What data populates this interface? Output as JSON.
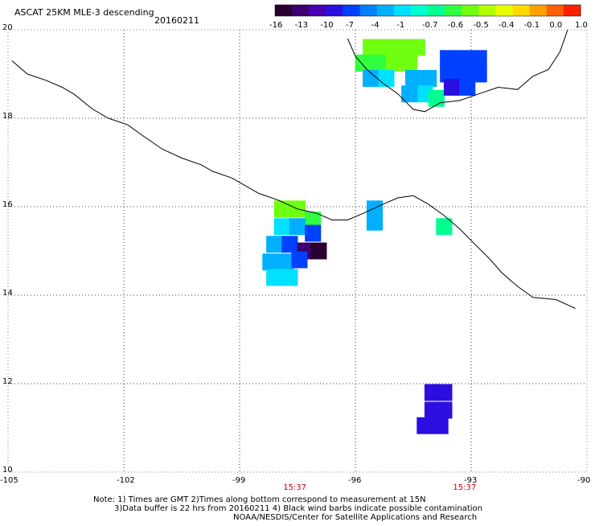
{
  "header": {
    "title": "ASCAT 25KM MLE-3 descending",
    "date": "20160211"
  },
  "colorbar": {
    "labels": [
      "-16",
      "-13",
      "-10",
      "-7",
      "-4",
      "-1",
      "-0.7",
      "-0.6",
      "-0.5",
      "-0.4",
      "-0.1",
      "0.0",
      "1.0"
    ],
    "colors": [
      "#2a0030",
      "#3c0070",
      "#4a00b0",
      "#2b0ee0",
      "#0040ff",
      "#0080ff",
      "#00b0ff",
      "#00e0ff",
      "#00ffd0",
      "#00ff90",
      "#30ff40",
      "#70ff10",
      "#b0ff00",
      "#e8ff00",
      "#ffd800",
      "#ffa000",
      "#ff6000",
      "#ff2000"
    ]
  },
  "axes": {
    "lon_ticks": [
      "-105",
      "-102",
      "-99",
      "-96",
      "-93",
      "-90"
    ],
    "lon_values": [
      -105,
      -102,
      -99,
      -96,
      -93,
      -90
    ],
    "lat_ticks": [
      "20",
      "18",
      "16",
      "14",
      "12",
      "10"
    ],
    "lat_values": [
      20,
      18,
      16,
      14,
      12,
      10
    ],
    "times": [
      "15:37",
      "15:37"
    ],
    "time_lons": [
      -97.6,
      -93.2
    ],
    "time_color": "#cc0000"
  },
  "map_data": {
    "lon_range": [
      -105,
      -90
    ],
    "lat_range": [
      10,
      20
    ],
    "coastline": [
      [
        -104.9,
        19.3
      ],
      [
        -104.5,
        19.0
      ],
      [
        -104.0,
        18.85
      ],
      [
        -103.6,
        18.7
      ],
      [
        -103.3,
        18.55
      ],
      [
        -102.8,
        18.2
      ],
      [
        -102.4,
        18.0
      ],
      [
        -101.9,
        17.85
      ],
      [
        -101.5,
        17.6
      ],
      [
        -101.0,
        17.3
      ],
      [
        -100.5,
        17.1
      ],
      [
        -100.0,
        16.95
      ],
      [
        -99.7,
        16.8
      ],
      [
        -99.2,
        16.65
      ],
      [
        -98.8,
        16.45
      ],
      [
        -98.5,
        16.3
      ],
      [
        -98.0,
        16.15
      ],
      [
        -97.5,
        15.95
      ],
      [
        -97.0,
        15.85
      ],
      [
        -96.6,
        15.7
      ],
      [
        -96.2,
        15.7
      ],
      [
        -95.8,
        15.85
      ],
      [
        -95.3,
        16.05
      ],
      [
        -94.9,
        16.2
      ],
      [
        -94.5,
        16.25
      ],
      [
        -94.1,
        16.05
      ],
      [
        -93.7,
        15.8
      ],
      [
        -93.3,
        15.5
      ],
      [
        -92.9,
        15.15
      ],
      [
        -92.5,
        14.8
      ],
      [
        -92.2,
        14.5
      ],
      [
        -91.8,
        14.2
      ],
      [
        -91.4,
        13.95
      ],
      [
        -90.8,
        13.9
      ],
      [
        -90.3,
        13.7
      ]
    ],
    "gulf_coast": [
      [
        -96.2,
        19.8
      ],
      [
        -96.0,
        19.4
      ],
      [
        -95.7,
        19.1
      ],
      [
        -95.3,
        18.8
      ],
      [
        -94.9,
        18.55
      ],
      [
        -94.5,
        18.2
      ],
      [
        -94.2,
        18.15
      ],
      [
        -93.8,
        18.35
      ],
      [
        -93.3,
        18.4
      ],
      [
        -92.8,
        18.55
      ],
      [
        -92.3,
        18.7
      ],
      [
        -91.8,
        18.65
      ],
      [
        -91.4,
        18.95
      ],
      [
        -91.0,
        19.1
      ],
      [
        -90.7,
        19.5
      ],
      [
        -90.5,
        20.0
      ]
    ],
    "cells": [
      {
        "lon": -95.6,
        "lat": 19.6,
        "value": "-0.5"
      },
      {
        "lon": -95.2,
        "lat": 19.6,
        "value": "-0.5"
      },
      {
        "lon": -94.8,
        "lat": 19.6,
        "value": "-0.5"
      },
      {
        "lon": -94.4,
        "lat": 19.6,
        "value": "-0.5"
      },
      {
        "lon": -95.8,
        "lat": 19.25,
        "value": "-0.6"
      },
      {
        "lon": -95.4,
        "lat": 19.25,
        "value": "-0.6"
      },
      {
        "lon": -95.0,
        "lat": 19.25,
        "value": "-0.5"
      },
      {
        "lon": -94.6,
        "lat": 19.25,
        "value": "-0.5"
      },
      {
        "lon": -95.6,
        "lat": 18.9,
        "value": "-4"
      },
      {
        "lon": -95.2,
        "lat": 18.9,
        "value": "-1"
      },
      {
        "lon": -94.5,
        "lat": 18.9,
        "value": "-4"
      },
      {
        "lon": -94.1,
        "lat": 18.9,
        "value": "-4"
      },
      {
        "lon": -94.2,
        "lat": 18.55,
        "value": "-1"
      },
      {
        "lon": -94.6,
        "lat": 18.55,
        "value": "-4"
      },
      {
        "lon": -93.9,
        "lat": 18.45,
        "value": "-0.7"
      },
      {
        "lon": -93.6,
        "lat": 19.35,
        "value": "-7"
      },
      {
        "lon": -93.2,
        "lat": 19.35,
        "value": "-7"
      },
      {
        "lon": -92.8,
        "lat": 19.35,
        "value": "-7"
      },
      {
        "lon": -93.6,
        "lat": 19.0,
        "value": "-7"
      },
      {
        "lon": -93.2,
        "lat": 19.0,
        "value": "-7"
      },
      {
        "lon": -92.8,
        "lat": 19.0,
        "value": "-7"
      },
      {
        "lon": -93.5,
        "lat": 18.7,
        "value": "-10"
      },
      {
        "lon": -93.1,
        "lat": 18.7,
        "value": "-7"
      },
      {
        "lon": -97.9,
        "lat": 15.95,
        "value": "-0.5"
      },
      {
        "lon": -97.5,
        "lat": 15.95,
        "value": "-0.5"
      },
      {
        "lon": -97.1,
        "lat": 15.7,
        "value": "-0.6"
      },
      {
        "lon": -97.9,
        "lat": 15.55,
        "value": "-1"
      },
      {
        "lon": -97.5,
        "lat": 15.55,
        "value": "-4"
      },
      {
        "lon": -97.1,
        "lat": 15.4,
        "value": "-7"
      },
      {
        "lon": -98.1,
        "lat": 15.15,
        "value": "-4"
      },
      {
        "lon": -97.7,
        "lat": 15.15,
        "value": "-7"
      },
      {
        "lon": -97.3,
        "lat": 15.0,
        "value": "-13"
      },
      {
        "lon": -96.95,
        "lat": 15.0,
        "value": "-16"
      },
      {
        "lon": -98.2,
        "lat": 14.75,
        "value": "-4"
      },
      {
        "lon": -97.8,
        "lat": 14.75,
        "value": "-4"
      },
      {
        "lon": -97.45,
        "lat": 14.8,
        "value": "-7"
      },
      {
        "lon": -98.1,
        "lat": 14.4,
        "value": "-1"
      },
      {
        "lon": -97.7,
        "lat": 14.4,
        "value": "-1"
      },
      {
        "lon": -95.5,
        "lat": 15.95,
        "value": "-4"
      },
      {
        "lon": -95.5,
        "lat": 15.65,
        "value": "-4"
      },
      {
        "lon": -93.7,
        "lat": 15.55,
        "value": "-0.7"
      },
      {
        "lon": -94.0,
        "lat": 11.8,
        "value": "-10"
      },
      {
        "lon": -93.7,
        "lat": 11.8,
        "value": "-10"
      },
      {
        "lon": -94.0,
        "lat": 11.4,
        "value": "-10"
      },
      {
        "lon": -93.7,
        "lat": 11.4,
        "value": "-10"
      },
      {
        "lon": -94.2,
        "lat": 11.05,
        "value": "-10"
      },
      {
        "lon": -93.8,
        "lat": 11.05,
        "value": "-10"
      }
    ]
  },
  "footer": {
    "note_line1": "Note: 1) Times are GMT 2)Times along bottom correspond to measurement at 15N",
    "note_line2": "3)Data buffer is 22 hrs from 20160211 4) Black wind barbs indicate possible contamination",
    "credit": "NOAA/NESDIS/Center for Satellite Applications and Research"
  }
}
